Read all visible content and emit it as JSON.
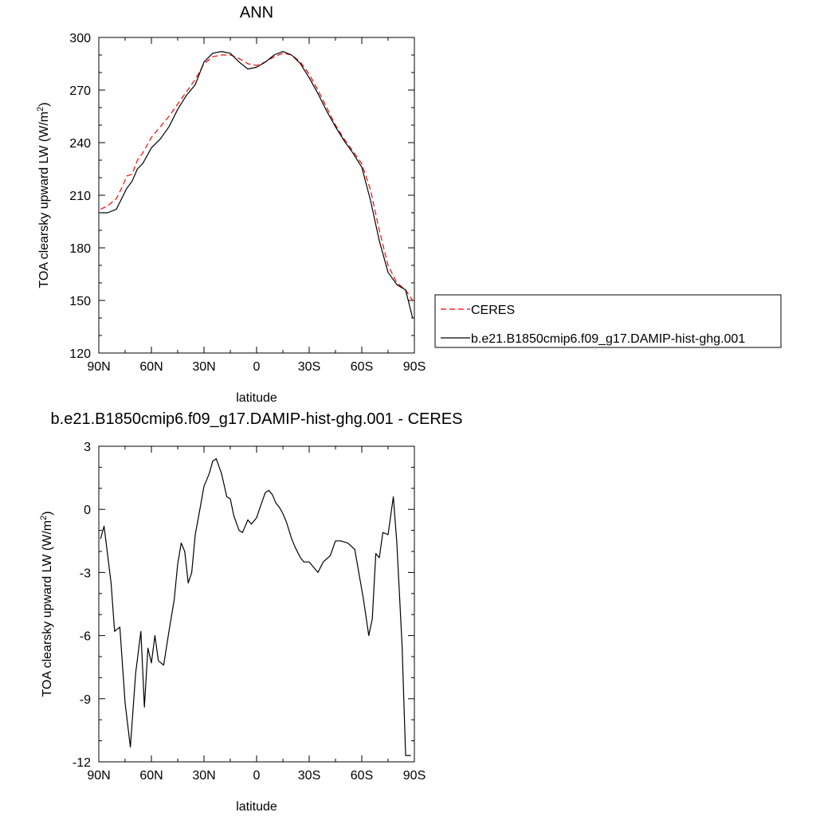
{
  "chart_data": [
    {
      "type": "line",
      "title": "ANN",
      "xlabel": "latitude",
      "ylabel_main": "TOA clearsky upward LW (W/m",
      "ylabel_sup": "2",
      "ylabel_tail": ")",
      "xlim": [
        90,
        -90
      ],
      "ylim": [
        120,
        300
      ],
      "x_ticks": [
        {
          "value": 90,
          "label": "90N"
        },
        {
          "value": 60,
          "label": "60N"
        },
        {
          "value": 30,
          "label": "30N"
        },
        {
          "value": 0,
          "label": "0"
        },
        {
          "value": -30,
          "label": "30S"
        },
        {
          "value": -60,
          "label": "60S"
        },
        {
          "value": -90,
          "label": "90S"
        }
      ],
      "y_ticks": [
        {
          "value": 120,
          "label": "120"
        },
        {
          "value": 150,
          "label": "150"
        },
        {
          "value": 180,
          "label": "180"
        },
        {
          "value": 210,
          "label": "210"
        },
        {
          "value": 240,
          "label": "240"
        },
        {
          "value": 270,
          "label": "270"
        },
        {
          "value": 300,
          "label": "300"
        }
      ],
      "legend_position": "right, outside plot",
      "series": [
        {
          "name": "CERES",
          "color": "#ff0000",
          "style": "dashed",
          "x": [
            89,
            85,
            80,
            77,
            74,
            71,
            68,
            65,
            60,
            55,
            50,
            45,
            40,
            35,
            30,
            25,
            20,
            15,
            10,
            5,
            0,
            -5,
            -10,
            -15,
            -20,
            -25,
            -30,
            -35,
            -40,
            -45,
            -50,
            -55,
            -60,
            -65,
            -70,
            -75,
            -80,
            -85,
            -89
          ],
          "y": [
            202,
            204,
            208,
            214,
            221,
            222,
            230,
            234,
            243,
            249,
            255,
            262,
            269,
            276,
            285,
            289,
            290,
            290,
            288,
            285,
            284,
            286,
            289,
            291,
            290,
            286,
            279,
            270,
            260,
            250,
            242,
            235,
            228,
            213,
            190,
            170,
            160,
            156,
            150
          ]
        },
        {
          "name": "b.e21.B1850cmip6.f09_g17.DAMIP-hist-ghg.001",
          "color": "#000000",
          "style": "solid",
          "x": [
            89,
            85,
            80,
            77,
            74,
            71,
            68,
            65,
            60,
            55,
            50,
            45,
            40,
            35,
            30,
            25,
            20,
            15,
            10,
            5,
            0,
            -5,
            -10,
            -15,
            -20,
            -25,
            -30,
            -35,
            -40,
            -45,
            -50,
            -55,
            -60,
            -65,
            -70,
            -75,
            -80,
            -85,
            -89
          ],
          "y": [
            200,
            200,
            202,
            208,
            214,
            218,
            225,
            228,
            237,
            242,
            249,
            259,
            267,
            273,
            286,
            291,
            292,
            291,
            286,
            282,
            283,
            286,
            290,
            292,
            290,
            285,
            277,
            268,
            258,
            249,
            241,
            234,
            226,
            207,
            184,
            166,
            159,
            156,
            140
          ]
        }
      ]
    },
    {
      "type": "line",
      "title": "b.e21.B1850cmip6.f09_g17.DAMIP-hist-ghg.001 - CERES",
      "xlabel": "latitude",
      "ylabel_main": "TOA clearsky upward LW (W/m",
      "ylabel_sup": "2",
      "ylabel_tail": ")",
      "xlim": [
        90,
        -90
      ],
      "ylim": [
        -12,
        3
      ],
      "x_ticks": [
        {
          "value": 90,
          "label": "90N"
        },
        {
          "value": 60,
          "label": "60N"
        },
        {
          "value": 30,
          "label": "30N"
        },
        {
          "value": 0,
          "label": "0"
        },
        {
          "value": -30,
          "label": "30S"
        },
        {
          "value": -60,
          "label": "60S"
        },
        {
          "value": -90,
          "label": "90S"
        }
      ],
      "y_ticks": [
        {
          "value": 3,
          "label": "3"
        },
        {
          "value": 0,
          "label": "0"
        },
        {
          "value": -3,
          "label": "-3"
        },
        {
          "value": -6,
          "label": "-6"
        },
        {
          "value": -9,
          "label": "-9"
        },
        {
          "value": -12,
          "label": "-12"
        }
      ],
      "series": [
        {
          "name": "",
          "color": "#000000",
          "style": "solid",
          "x": [
            89,
            87,
            83,
            81,
            78,
            75,
            72,
            69,
            66,
            64,
            62,
            60,
            58,
            56,
            53,
            50,
            47,
            45,
            43,
            41,
            39,
            37,
            35,
            33,
            30,
            27,
            25,
            23,
            20,
            17,
            15,
            13,
            10,
            8,
            5,
            3,
            0,
            -2,
            -5,
            -7,
            -9,
            -11,
            -13,
            -15,
            -17,
            -20,
            -22,
            -25,
            -27,
            -30,
            -32,
            -35,
            -38,
            -42,
            -45,
            -48,
            -52,
            -56,
            -61,
            -64,
            -66,
            -68,
            -70,
            -72,
            -75,
            -78,
            -80,
            -83,
            -85,
            -88
          ],
          "y": [
            -1.4,
            -0.8,
            -3.5,
            -5.8,
            -5.6,
            -9.2,
            -11.3,
            -7.8,
            -5.8,
            -9.4,
            -6.6,
            -7.3,
            -6.0,
            -7.2,
            -7.4,
            -5.8,
            -4.3,
            -2.6,
            -1.6,
            -2.0,
            -3.5,
            -3.0,
            -1.2,
            -0.3,
            1.1,
            1.7,
            2.3,
            2.4,
            1.7,
            0.6,
            0.5,
            -0.3,
            -1.0,
            -1.1,
            -0.5,
            -0.7,
            -0.4,
            0.1,
            0.8,
            0.9,
            0.7,
            0.3,
            0.1,
            -0.2,
            -0.6,
            -1.4,
            -1.8,
            -2.3,
            -2.5,
            -2.5,
            -2.7,
            -3.0,
            -2.5,
            -2.2,
            -1.5,
            -1.5,
            -1.6,
            -1.9,
            -4.3,
            -6.0,
            -5.2,
            -2.1,
            -2.3,
            -1.1,
            -1.2,
            0.6,
            -1.6,
            -6.5,
            -11.7,
            -11.7
          ]
        }
      ]
    }
  ]
}
